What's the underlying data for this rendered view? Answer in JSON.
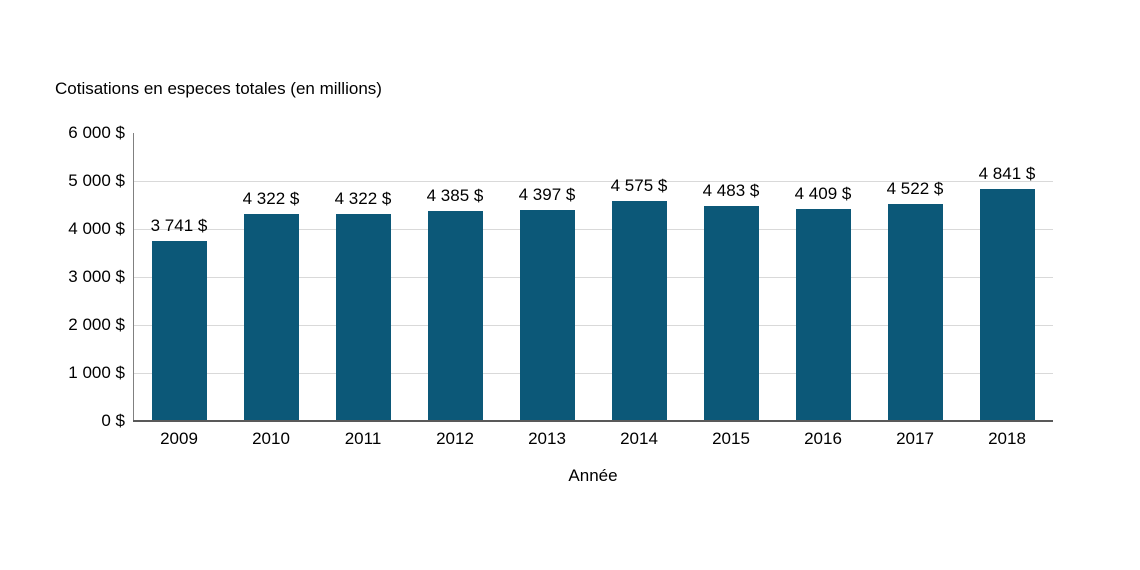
{
  "chart_data": {
    "type": "bar",
    "title": "Cotisations en especes totales (en millions)",
    "xlabel": "Année",
    "ylabel": "",
    "categories": [
      "2009",
      "2010",
      "2011",
      "2012",
      "2013",
      "2014",
      "2015",
      "2016",
      "2017",
      "2018"
    ],
    "values": [
      3741,
      4322,
      4322,
      4385,
      4397,
      4575,
      4483,
      4409,
      4522,
      4841
    ],
    "value_labels": [
      "3 741 $",
      "4 322 $",
      "4 322 $",
      "4 385 $",
      "4 397 $",
      "4 575 $",
      "4 483 $",
      "4 409 $",
      "4 522 $",
      "4 841 $"
    ],
    "y_ticks": [
      "6 000 $",
      "5 000 $",
      "4 000 $",
      "3 000 $",
      "2 000 $",
      "1 000 $",
      "0 $"
    ],
    "y_tick_values": [
      6000,
      5000,
      4000,
      3000,
      2000,
      1000,
      0
    ],
    "ylim": [
      0,
      6000
    ],
    "grid": true,
    "legend": "none",
    "bar_color": "#0c5878",
    "gridline_color": "#d9d9d9",
    "y_axis_line_color": "#808080",
    "x_axis_line_color": "#595959",
    "text_color": "#000000"
  }
}
